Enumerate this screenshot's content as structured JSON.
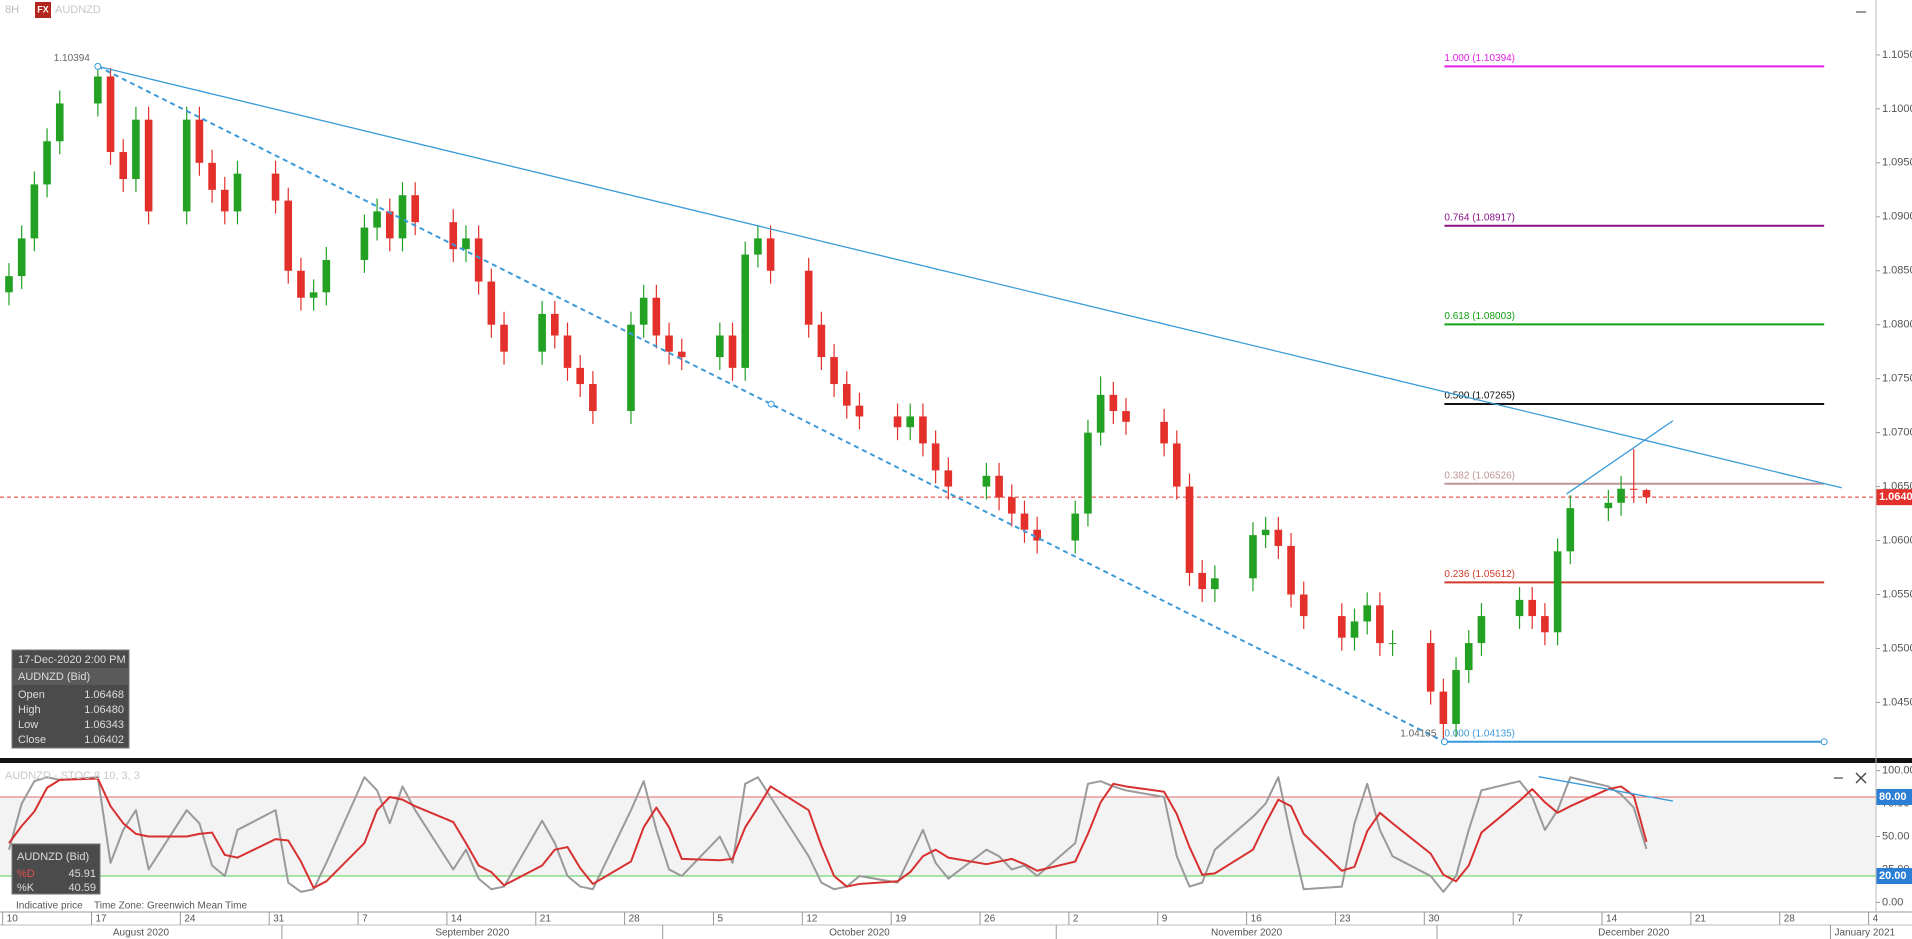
{
  "header": {
    "timeframe": "8H",
    "badge": "FX",
    "symbol": "AUDNZD"
  },
  "ohlc_box": {
    "time": "17-Dec-2020 2:00 PM",
    "instrument": "AUDNZD (Bid)",
    "rows": [
      {
        "label": "Open",
        "value": "1.06468"
      },
      {
        "label": "High",
        "value": "1.06480"
      },
      {
        "label": "Low",
        "value": "1.06343"
      },
      {
        "label": "Close",
        "value": "1.06402"
      }
    ]
  },
  "stoch_box": {
    "instrument": "AUDNZD (Bid)"
  },
  "footer": {
    "note": "Indicative price",
    "timezone": "Time Zone: Greenwich Mean Time"
  },
  "chart_data": [
    {
      "type": "candlestick",
      "x": [
        "2020-08-10",
        "2020-08-11",
        "2020-08-12",
        "2020-08-13",
        "2020-08-14",
        "2020-08-17",
        "2020-08-18",
        "2020-08-19",
        "2020-08-20",
        "2020-08-21",
        "2020-08-24",
        "2020-08-25",
        "2020-08-26",
        "2020-08-27",
        "2020-08-28",
        "2020-08-31",
        "2020-09-01",
        "2020-09-02",
        "2020-09-03",
        "2020-09-04",
        "2020-09-07",
        "2020-09-08",
        "2020-09-09",
        "2020-09-10",
        "2020-09-11",
        "2020-09-14",
        "2020-09-15",
        "2020-09-16",
        "2020-09-17",
        "2020-09-18",
        "2020-09-21",
        "2020-09-22",
        "2020-09-23",
        "2020-09-24",
        "2020-09-25",
        "2020-09-28",
        "2020-09-29",
        "2020-09-30",
        "2020-10-01",
        "2020-10-02",
        "2020-10-05",
        "2020-10-06",
        "2020-10-07",
        "2020-10-08",
        "2020-10-09",
        "2020-10-12",
        "2020-10-13",
        "2020-10-14",
        "2020-10-15",
        "2020-10-16",
        "2020-10-19",
        "2020-10-20",
        "2020-10-21",
        "2020-10-22",
        "2020-10-23",
        "2020-10-26",
        "2020-10-27",
        "2020-10-28",
        "2020-10-29",
        "2020-10-30",
        "2020-11-02",
        "2020-11-03",
        "2020-11-04",
        "2020-11-05",
        "2020-11-06",
        "2020-11-09",
        "2020-11-10",
        "2020-11-11",
        "2020-11-12",
        "2020-11-13",
        "2020-11-16",
        "2020-11-17",
        "2020-11-18",
        "2020-11-19",
        "2020-11-20",
        "2020-11-23",
        "2020-11-24",
        "2020-11-25",
        "2020-11-26",
        "2020-11-27",
        "2020-11-30",
        "2020-12-01",
        "2020-12-02",
        "2020-12-03",
        "2020-12-04",
        "2020-12-07",
        "2020-12-08",
        "2020-12-09",
        "2020-12-10",
        "2020-12-11",
        "2020-12-14",
        "2020-12-15",
        "2020-12-16",
        "2020-12-17"
      ],
      "open": [
        1.083,
        1.0845,
        1.088,
        1.093,
        1.097,
        1.1005,
        1.103,
        1.096,
        1.0935,
        1.099,
        1.0905,
        1.099,
        1.095,
        1.0925,
        1.0905,
        1.094,
        1.0915,
        1.085,
        1.0825,
        1.083,
        1.086,
        1.089,
        1.0905,
        1.088,
        1.092,
        1.0895,
        1.087,
        1.088,
        1.084,
        1.08,
        1.0775,
        1.081,
        1.079,
        1.076,
        1.0745,
        1.072,
        1.08,
        1.0825,
        1.079,
        1.0775,
        1.077,
        1.079,
        1.076,
        1.0865,
        1.088,
        1.085,
        1.08,
        1.077,
        1.0745,
        1.0725,
        1.0715,
        1.0705,
        1.0715,
        1.069,
        1.0665,
        1.065,
        1.066,
        1.064,
        1.0625,
        1.061,
        1.06,
        1.0625,
        1.07,
        1.0735,
        1.072,
        1.071,
        1.069,
        1.065,
        1.057,
        1.0555,
        1.0565,
        1.0605,
        1.061,
        1.0595,
        1.055,
        1.053,
        1.051,
        1.0525,
        1.054,
        1.0505,
        1.0505,
        1.046,
        1.043,
        1.048,
        1.0505,
        1.053,
        1.0545,
        1.053,
        1.0515,
        1.059,
        1.063,
        1.0635,
        1.0648,
        1.06468
      ],
      "high": [
        1.0857,
        1.0892,
        1.0942,
        1.0982,
        1.1017,
        1.10394,
        1.1038,
        1.0972,
        1.1002,
        1.1002,
        1.1002,
        1.1002,
        1.0962,
        1.0937,
        1.0952,
        1.0952,
        1.0927,
        1.0862,
        1.0842,
        1.0872,
        1.0902,
        1.0917,
        1.0917,
        1.0932,
        1.0932,
        1.0907,
        1.0892,
        1.0892,
        1.0852,
        1.0812,
        1.0822,
        1.0822,
        1.0802,
        1.0772,
        1.0757,
        1.0812,
        1.0837,
        1.0837,
        1.0802,
        1.0787,
        1.0802,
        1.0802,
        1.0877,
        1.0892,
        1.0892,
        1.0862,
        1.0812,
        1.0782,
        1.0757,
        1.0737,
        1.0727,
        1.0727,
        1.0727,
        1.0702,
        1.0677,
        1.0672,
        1.0672,
        1.0652,
        1.0637,
        1.0622,
        1.0637,
        1.0712,
        1.0752,
        1.0747,
        1.0732,
        1.0722,
        1.0702,
        1.0662,
        1.0582,
        1.0577,
        1.0617,
        1.0622,
        1.0622,
        1.0607,
        1.0562,
        1.0542,
        1.0537,
        1.0552,
        1.0552,
        1.0517,
        1.0517,
        1.0472,
        1.0492,
        1.0517,
        1.0542,
        1.0557,
        1.0557,
        1.0542,
        1.0602,
        1.0642,
        1.0647,
        1.066,
        1.0685,
        1.0648
      ],
      "low": [
        1.0818,
        1.0833,
        1.0868,
        1.0918,
        1.0958,
        1.0993,
        1.0948,
        1.0923,
        1.0923,
        1.0893,
        1.0893,
        1.0938,
        1.0913,
        1.0893,
        1.0893,
        1.0903,
        1.0838,
        1.0813,
        1.0813,
        1.0818,
        1.0848,
        1.0878,
        1.0868,
        1.0868,
        1.0883,
        1.0858,
        1.0858,
        1.0828,
        1.0788,
        1.0763,
        1.0763,
        1.0778,
        1.0748,
        1.0733,
        1.0708,
        1.0708,
        1.0788,
        1.0778,
        1.0763,
        1.0758,
        1.0758,
        1.0748,
        1.0748,
        1.0853,
        1.0838,
        1.0788,
        1.0758,
        1.0733,
        1.0713,
        1.0703,
        1.0693,
        1.0693,
        1.0678,
        1.0653,
        1.0638,
        1.0638,
        1.0628,
        1.0613,
        1.0598,
        1.0588,
        1.0588,
        1.0613,
        1.0688,
        1.0708,
        1.0698,
        1.0678,
        1.0638,
        1.0558,
        1.0543,
        1.0543,
        1.0553,
        1.0593,
        1.0583,
        1.0538,
        1.0518,
        1.0498,
        1.0498,
        1.0513,
        1.0493,
        1.0493,
        1.0448,
        1.04135,
        1.0418,
        1.0468,
        1.0493,
        1.0518,
        1.0518,
        1.0503,
        1.0503,
        1.0578,
        1.0618,
        1.0623,
        1.0635,
        1.06343
      ],
      "close": [
        1.0845,
        1.088,
        1.093,
        1.097,
        1.1005,
        1.103,
        1.096,
        1.0935,
        1.099,
        1.0905,
        1.099,
        1.095,
        1.0925,
        1.0905,
        1.094,
        1.0915,
        1.085,
        1.0825,
        1.083,
        1.086,
        1.089,
        1.0905,
        1.088,
        1.092,
        1.0895,
        1.087,
        1.088,
        1.084,
        1.08,
        1.0775,
        1.081,
        1.079,
        1.076,
        1.0745,
        1.072,
        1.08,
        1.0825,
        1.079,
        1.0775,
        1.077,
        1.079,
        1.076,
        1.0865,
        1.088,
        1.085,
        1.08,
        1.077,
        1.0745,
        1.0725,
        1.0715,
        1.0705,
        1.0715,
        1.069,
        1.0665,
        1.065,
        1.066,
        1.064,
        1.0625,
        1.061,
        1.06,
        1.0625,
        1.07,
        1.0735,
        1.072,
        1.071,
        1.069,
        1.065,
        1.057,
        1.0555,
        1.0565,
        1.0605,
        1.061,
        1.0595,
        1.055,
        1.053,
        1.051,
        1.0525,
        1.054,
        1.0505,
        1.0505,
        1.046,
        1.043,
        1.048,
        1.0505,
        1.053,
        1.0545,
        1.053,
        1.0515,
        1.059,
        1.063,
        1.0635,
        1.0648,
        1.0647,
        1.06402
      ],
      "up_color": "#22a122",
      "down_color": "#e3302a",
      "xlim": [
        "2020-08-09T19:00",
        "2021-01-04T14:00"
      ],
      "xticks": [
        {
          "value": "2020-08-10",
          "label": "10"
        },
        {
          "value": "2020-08-17",
          "label": "17"
        },
        {
          "value": "2020-08-24",
          "label": "24"
        },
        {
          "value": "2020-08-31",
          "label": "31"
        },
        {
          "value": "2020-09-07",
          "label": "7"
        },
        {
          "value": "2020-09-14",
          "label": "14"
        },
        {
          "value": "2020-09-21",
          "label": "21"
        },
        {
          "value": "2020-09-28",
          "label": "28"
        },
        {
          "value": "2020-10-05",
          "label": "5"
        },
        {
          "value": "2020-10-12",
          "label": "12"
        },
        {
          "value": "2020-10-19",
          "label": "19"
        },
        {
          "value": "2020-10-26",
          "label": "26"
        },
        {
          "value": "2020-11-02",
          "label": "2"
        },
        {
          "value": "2020-11-09",
          "label": "9"
        },
        {
          "value": "2020-11-16",
          "label": "16"
        },
        {
          "value": "2020-11-23",
          "label": "23"
        },
        {
          "value": "2020-11-30",
          "label": "30"
        },
        {
          "value": "2020-12-07",
          "label": "7"
        },
        {
          "value": "2020-12-14",
          "label": "14"
        },
        {
          "value": "2020-12-21",
          "label": "21"
        },
        {
          "value": "2020-12-28",
          "label": "28"
        },
        {
          "value": "2021-01-04",
          "label": "4"
        }
      ],
      "month_labels": [
        {
          "value": "2020-08",
          "label": "August 2020"
        },
        {
          "value": "2020-09",
          "label": "September 2020"
        },
        {
          "value": "2020-10",
          "label": "October 2020"
        },
        {
          "value": "2020-11",
          "label": "November 2020"
        },
        {
          "value": "2020-12",
          "label": "December 2020"
        },
        {
          "value": "2021-01",
          "label": "January 2021"
        }
      ],
      "ylim": [
        1.03985,
        1.10805
      ],
      "yticks": [
        {
          "value": 1.045,
          "label": "1.04500"
        },
        {
          "value": 1.05,
          "label": "1.05000"
        },
        {
          "value": 1.055,
          "label": "1.05500"
        },
        {
          "value": 1.06,
          "label": "1.06000"
        },
        {
          "value": 1.065,
          "label": "1.06500"
        },
        {
          "value": 1.07,
          "label": "1.07000"
        },
        {
          "value": 1.075,
          "label": "1.07500"
        },
        {
          "value": 1.08,
          "label": "1.08000"
        },
        {
          "value": 1.085,
          "label": "1.08500"
        },
        {
          "value": 1.09,
          "label": "1.09000"
        },
        {
          "value": 1.095,
          "label": "1.09500"
        },
        {
          "value": 1.1,
          "label": "1.10000"
        },
        {
          "value": 1.105,
          "label": "1.10500"
        }
      ],
      "last_price": 1.06402,
      "last_price_color": "#e3302a",
      "trendlines": [
        {
          "x": [
            "2020-08-17T12:00",
            "2021-01-01T21:00"
          ],
          "y": [
            1.10394,
            1.06489
          ],
          "dashed": false,
          "color": "#3a9ad9"
        },
        {
          "x": [
            "2020-08-17T12:00",
            "2020-12-01T14:00"
          ],
          "y": [
            1.10394,
            1.04135
          ],
          "dashed": true,
          "color": "#3a9ad9"
        },
        {
          "x": [
            "2020-12-11T05:00",
            "2020-12-19T14:00"
          ],
          "y": [
            1.06432,
            1.0711
          ],
          "dashed": false,
          "color": "#3a9ad9"
        }
      ],
      "fib_x": [
        "2020-12-01T14:00",
        "2020-12-31T12:00"
      ],
      "fib_levels": [
        {
          "value": 1.10394,
          "label": "1.000 (1.10394)",
          "color": "#e020e0"
        },
        {
          "value": 1.08917,
          "label": "0.764 (1.08917)",
          "color": "#8a128a"
        },
        {
          "value": 1.08003,
          "label": "0.618 (1.08003)",
          "color": "#10a010"
        },
        {
          "value": 1.07265,
          "label": "0.500 (1.07265)",
          "color": "#111111"
        },
        {
          "value": 1.06526,
          "label": "0.382 (1.06526)",
          "color": "#c09595"
        },
        {
          "value": 1.05612,
          "label": "0.236 (1.05612)",
          "color": "#d03a2a"
        },
        {
          "value": 1.04135,
          "label": "0.000 (1.04135)",
          "color": "#3a9ad9"
        }
      ],
      "annotations": [
        {
          "x": "2020-08-17T12:00",
          "y": 1.10394
        },
        {
          "x": "2020-12-01T14:00",
          "y": 1.04135
        }
      ]
    },
    {
      "type": "line",
      "title": "AUDNZD - STOC 8 10, 3, 3",
      "series": [
        {
          "name": "%K",
          "color": "#9a9a9a",
          "values": [
            40,
            75,
            92,
            95,
            93,
            95,
            30,
            55,
            70,
            25,
            70,
            60,
            28,
            20,
            55,
            70,
            15,
            8,
            10,
            30,
            95,
            85,
            60,
            88,
            70,
            25,
            40,
            18,
            10,
            12,
            62,
            45,
            20,
            12,
            10,
            70,
            92,
            55,
            25,
            20,
            50,
            30,
            90,
            95,
            80,
            35,
            15,
            10,
            12,
            20,
            15,
            35,
            55,
            30,
            18,
            40,
            35,
            25,
            28,
            20,
            45,
            90,
            92,
            88,
            85,
            80,
            35,
            12,
            15,
            40,
            65,
            75,
            95,
            50,
            10,
            12,
            60,
            90,
            55,
            35,
            20,
            8,
            20,
            55,
            85,
            92,
            80,
            55,
            70,
            95,
            88,
            82,
            72,
            40.59
          ]
        },
        {
          "name": "%D",
          "color": "#d73030",
          "values": [
            45,
            58,
            69,
            87,
            93,
            94,
            73,
            60,
            52,
            50,
            50,
            52,
            53,
            36,
            34,
            48,
            47,
            31,
            11,
            16,
            45,
            70,
            80,
            78,
            73,
            61,
            45,
            28,
            23,
            13,
            28,
            40,
            42,
            26,
            14,
            31,
            57,
            72,
            57,
            33,
            32,
            33,
            57,
            72,
            88,
            70,
            43,
            20,
            12,
            14,
            16,
            23,
            35,
            40,
            34,
            29,
            31,
            33,
            29,
            24,
            31,
            52,
            76,
            90,
            88,
            84,
            67,
            42,
            21,
            22,
            40,
            60,
            78,
            73,
            52,
            24,
            27,
            54,
            68,
            60,
            37,
            21,
            16,
            28,
            53,
            77,
            86,
            76,
            68,
            73,
            86,
            88,
            81,
            45.91
          ]
        }
      ],
      "ylim": [
        -7.3,
        105.8
      ],
      "yticks": [
        {
          "value": 0,
          "label": "0.00"
        },
        {
          "value": 25,
          "label": "25.00"
        },
        {
          "value": 50,
          "label": "50.00"
        },
        {
          "value": 75,
          "label": "75.00"
        },
        {
          "value": 100,
          "label": "100.00"
        }
      ],
      "levels": [
        {
          "value": 80,
          "label": "80.00",
          "color": "#e06a6a"
        },
        {
          "value": 20,
          "label": "20.00",
          "color": "#52cf52"
        }
      ],
      "band_color": "#f3f3f3",
      "trendlines": [
        {
          "x": [
            "2020-12-09T00:00",
            "2020-12-19T14:00"
          ],
          "y": [
            95.4,
            76.9
          ],
          "dashed": false,
          "color": "#3a9ad9"
        }
      ]
    }
  ]
}
